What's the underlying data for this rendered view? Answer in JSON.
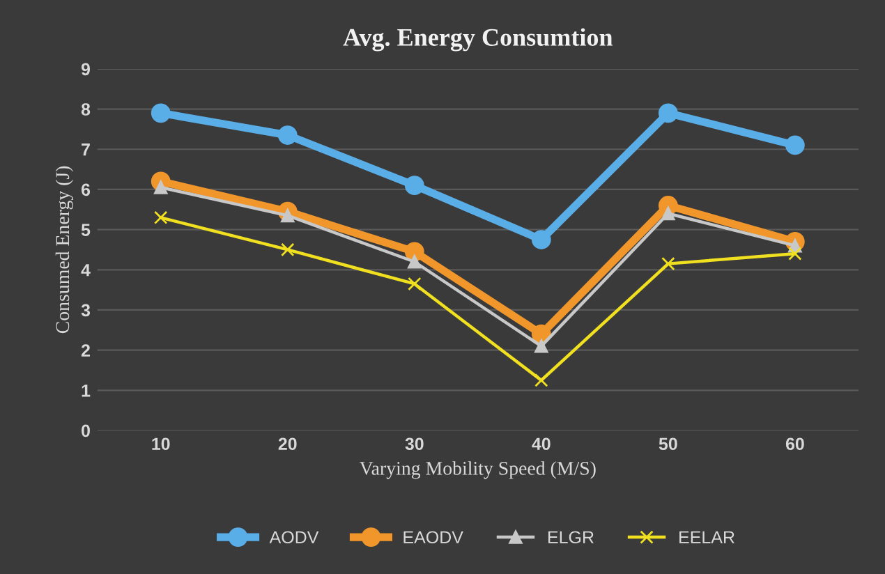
{
  "chart_data": {
    "type": "line",
    "title": "Avg. Energy Consumtion",
    "xlabel": "Varying Mobility Speed (M/S)",
    "ylabel": "Consumed Energy (J)",
    "categories": [
      "10",
      "20",
      "30",
      "40",
      "50",
      "60"
    ],
    "series": [
      {
        "name": "AODV",
        "color": "#5aaee8",
        "marker": "circle",
        "values": [
          7.9,
          7.35,
          6.1,
          4.75,
          7.9,
          7.1
        ]
      },
      {
        "name": "EAODV",
        "color": "#f0962a",
        "marker": "circle",
        "values": [
          6.2,
          5.45,
          4.45,
          2.4,
          5.6,
          4.7
        ]
      },
      {
        "name": "ELGR",
        "color": "#c8c8c8",
        "marker": "triangle",
        "values": [
          6.05,
          5.35,
          4.2,
          2.1,
          5.4,
          4.6
        ]
      },
      {
        "name": "EELAR",
        "color": "#f0e020",
        "marker": "cross",
        "values": [
          5.3,
          4.5,
          3.65,
          1.25,
          4.15,
          4.4
        ]
      }
    ],
    "ylim": [
      0,
      9
    ],
    "yticks": [
      0,
      1,
      2,
      3,
      4,
      5,
      6,
      7,
      8,
      9
    ],
    "grid": "y",
    "legend": "bottom"
  }
}
